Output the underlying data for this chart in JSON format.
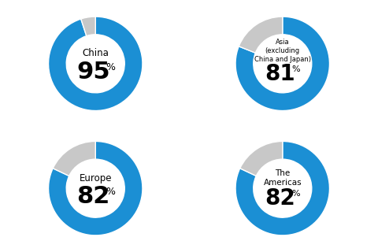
{
  "charts": [
    {
      "label": "China",
      "sublabel": "",
      "sublabel2": "",
      "value": 95,
      "remainder": 5,
      "row": 0,
      "col": 0
    },
    {
      "label": "Asia",
      "sublabel": "(excluding",
      "sublabel2": "China and Japan)",
      "value": 81,
      "remainder": 19,
      "row": 0,
      "col": 1
    },
    {
      "label": "Europe",
      "sublabel": "",
      "sublabel2": "",
      "value": 82,
      "remainder": 18,
      "row": 1,
      "col": 0
    },
    {
      "label": "The",
      "sublabel": "Americas",
      "sublabel2": "",
      "value": 82,
      "remainder": 18,
      "row": 1,
      "col": 1
    }
  ],
  "blue_color": "#1B8FD4",
  "gray_color": "#C8C8C8",
  "background_color": "#FFFFFF",
  "donut_width": 0.38,
  "start_angle": 90
}
